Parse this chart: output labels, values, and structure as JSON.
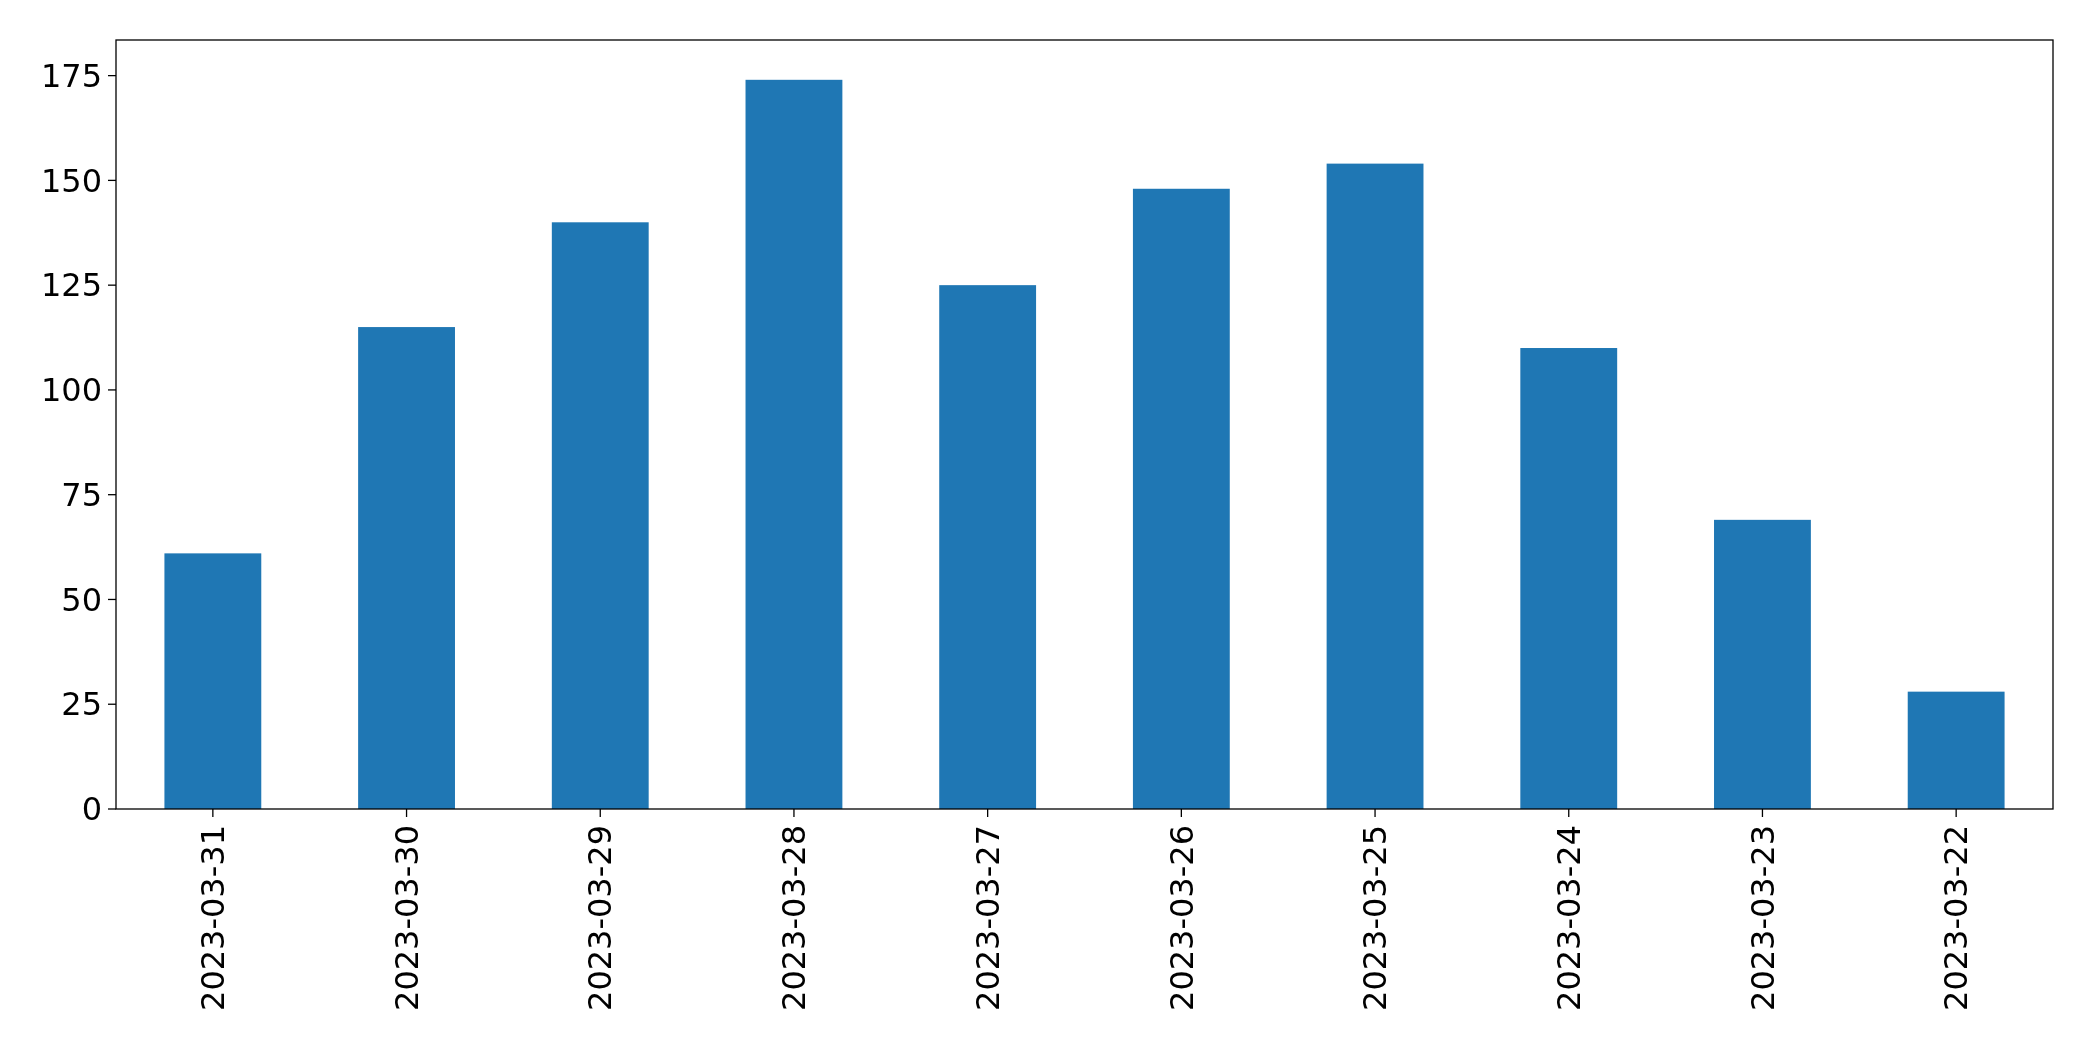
{
  "chart_data": {
    "type": "bar",
    "categories": [
      "2023-03-31",
      "2023-03-30",
      "2023-03-29",
      "2023-03-28",
      "2023-03-27",
      "2023-03-26",
      "2023-03-25",
      "2023-03-24",
      "2023-03-23",
      "2023-03-22"
    ],
    "values": [
      61,
      115,
      140,
      174,
      125,
      148,
      154,
      110,
      69,
      28
    ],
    "color": "#1f77b4",
    "ylim": [
      0,
      183.5
    ],
    "yticks": [
      0,
      25,
      50,
      75,
      100,
      125,
      150,
      175
    ],
    "grid": false
  }
}
